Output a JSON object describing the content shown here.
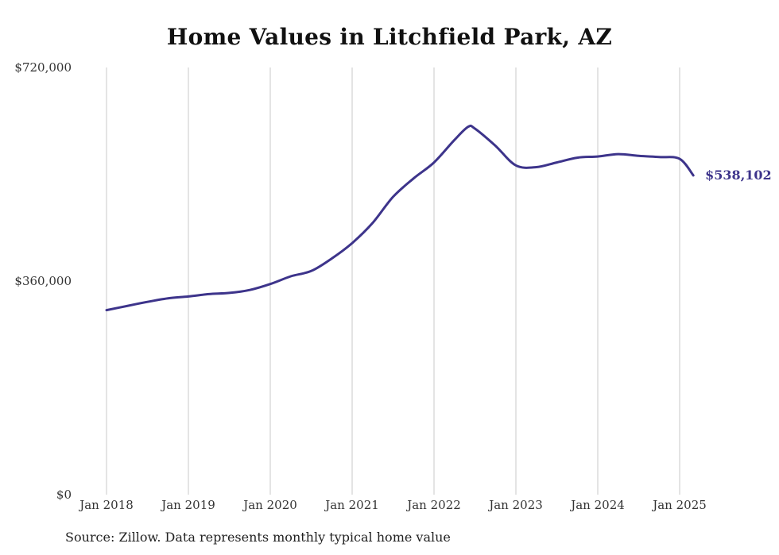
{
  "chart_data": {
    "type": "line",
    "title": "Home Values in Litchfield Park, AZ",
    "xlabel": "",
    "ylabel": "",
    "x_tick_labels": [
      "Jan 2018",
      "Jan 2019",
      "Jan 2020",
      "Jan 2021",
      "Jan 2022",
      "Jan 2023",
      "Jan 2024",
      "Jan 2025"
    ],
    "y_tick_labels": [
      "$0",
      "$360,000",
      "$720,000"
    ],
    "y_ticks": [
      0,
      360000,
      720000
    ],
    "ylim": [
      0,
      720000
    ],
    "xlim": [
      "2018-01",
      "2025-03"
    ],
    "grid": "vertical",
    "line_color": "#3d348b",
    "end_label": "$538,102",
    "series": [
      {
        "x": [
          "2018-01",
          "2018-04",
          "2018-07",
          "2018-10",
          "2019-01",
          "2019-04",
          "2019-07",
          "2019-10",
          "2020-01",
          "2020-04",
          "2020-07",
          "2020-10",
          "2021-01",
          "2021-04",
          "2021-07",
          "2021-10",
          "2022-01",
          "2022-04",
          "2022-06",
          "2022-07",
          "2022-10",
          "2023-01",
          "2023-04",
          "2023-07",
          "2023-10",
          "2024-01",
          "2024-04",
          "2024-07",
          "2024-10",
          "2025-01",
          "2025-03"
        ],
        "values": [
          311000,
          318000,
          325000,
          331000,
          334000,
          338000,
          340000,
          345000,
          355000,
          368000,
          377000,
          398000,
          424000,
          458000,
          502000,
          533000,
          560000,
          598000,
          620000,
          617000,
          588000,
          555000,
          552000,
          560000,
          568000,
          570000,
          574000,
          571000,
          569000,
          566000,
          538102
        ]
      }
    ]
  },
  "source": "Source: Zillow. Data represents monthly typical home value"
}
